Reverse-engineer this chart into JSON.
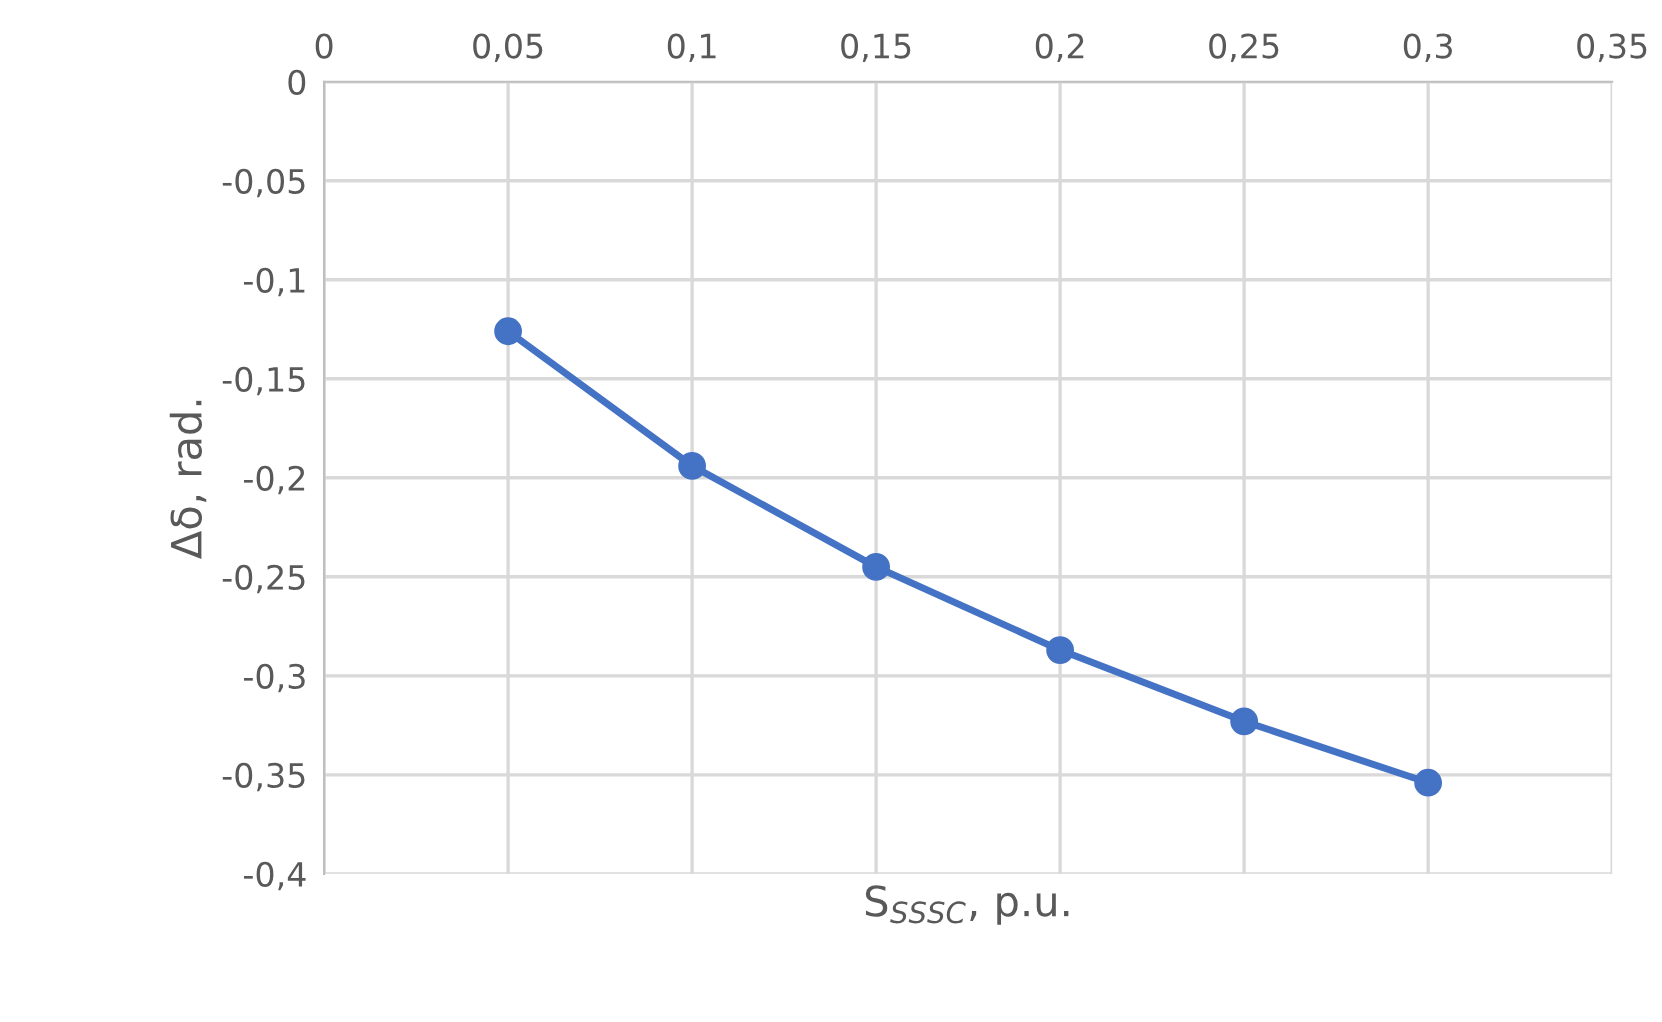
{
  "chart_data": {
    "type": "line",
    "xlabel": "S$_{SSSC}$, p.u.",
    "ylabel": "Δδ, rad.",
    "x": [
      0.05,
      0.1,
      0.15,
      0.2,
      0.25,
      0.3
    ],
    "series": [
      {
        "color": "#4472c4",
        "values": [
          -0.126,
          -0.194,
          -0.245,
          -0.287,
          -0.323,
          -0.354
        ]
      }
    ],
    "xlim": [
      0,
      0.35
    ],
    "xticks": [
      0,
      {
        "value": 0.05,
        "label": "0,05"
      },
      {
        "value": 0.1,
        "label": "0,1"
      },
      {
        "value": 0.15,
        "label": "0,15"
      },
      {
        "value": 0.2,
        "label": "0,2"
      },
      {
        "value": 0.25,
        "label": "0,25"
      },
      {
        "value": 0.3,
        "label": "0,3"
      },
      {
        "value": 0.35,
        "label": "0,35"
      }
    ],
    "ylim": [
      -0.4,
      0
    ],
    "yticks": [
      0,
      {
        "value": -0.05,
        "label": "-0,05"
      },
      {
        "value": -0.1,
        "label": "-0,1"
      },
      {
        "value": -0.15,
        "label": "-0,15"
      },
      {
        "value": -0.2,
        "label": "-0,2"
      },
      {
        "value": -0.25,
        "label": "-0,25"
      },
      {
        "value": -0.3,
        "label": "-0,3"
      },
      {
        "value": -0.35,
        "label": "-0,35"
      },
      {
        "value": -0.4,
        "label": "-0,4"
      }
    ],
    "grid": true,
    "marker": "circle",
    "line_style": "solid",
    "legend": false
  }
}
